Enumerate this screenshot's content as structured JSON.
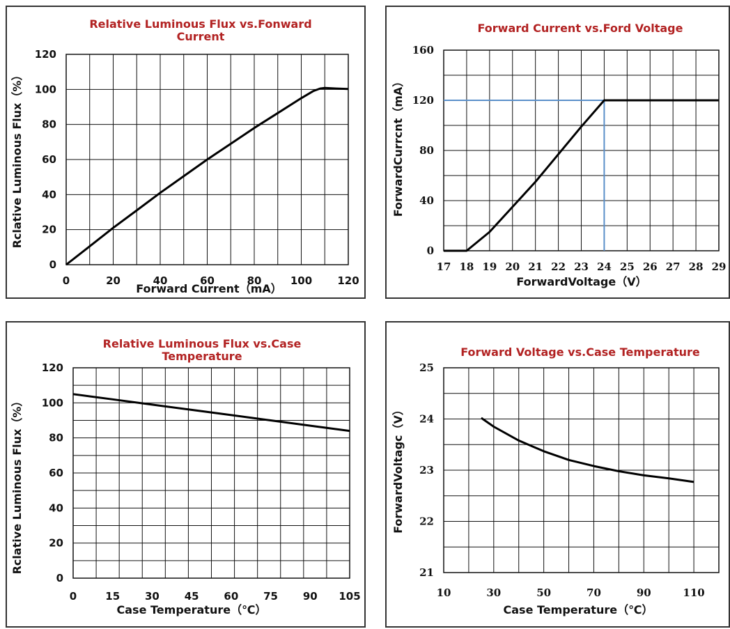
{
  "chart_data": [
    {
      "type": "line",
      "title": "Relative Luminous Flux vs.Fonward Current",
      "title_lines": [
        "Relative Luminous Flux vs.Fonward",
        "Current"
      ],
      "xlabel": "Forward Current（mA）",
      "ylabel": "Rclative Luminous Flux（%）",
      "xlim": [
        0,
        120
      ],
      "ylim": [
        0,
        120
      ],
      "x_ticks": [
        "0",
        "20",
        "40",
        "60",
        "80",
        "100",
        "120"
      ],
      "y_ticks": [
        "0",
        "20",
        "40",
        "60",
        "80",
        "100",
        "120"
      ],
      "grid": true,
      "series": [
        {
          "x": [
            0,
            10,
            20,
            30,
            40,
            50,
            60,
            70,
            80,
            90,
            100,
            105,
            108,
            110,
            115,
            120
          ],
          "y": [
            0,
            10.5,
            21,
            31,
            41,
            50.5,
            60,
            69,
            78,
            86.5,
            95,
            99,
            100.5,
            100.8,
            100.5,
            100.2
          ]
        }
      ]
    },
    {
      "type": "line",
      "title": "Forward Current vs.Ford Voltage",
      "title_lines": [
        "Forward Current vs.Ford Voltage"
      ],
      "xlabel": "ForwardVoltage（V）",
      "ylabel": "ForwardCurrcnt（mA）",
      "xlim": [
        17,
        29
      ],
      "ylim": [
        0,
        160
      ],
      "x_ticks": [
        "17",
        "18",
        "19",
        "20",
        "21",
        "22",
        "23",
        "24",
        "25",
        "26",
        "27",
        "28",
        "29"
      ],
      "y_ticks": [
        "0",
        "40",
        "80",
        "120",
        "160"
      ],
      "grid": true,
      "reference_lines": {
        "x": 24,
        "y": 120,
        "color": "#5a8fc9"
      },
      "series": [
        {
          "x": [
            17,
            18,
            19,
            20,
            21,
            22,
            23,
            24,
            25,
            26,
            27,
            28,
            29
          ],
          "y": [
            0,
            0,
            15,
            35,
            55,
            77,
            99,
            120,
            120,
            120,
            120,
            120,
            120
          ]
        }
      ]
    },
    {
      "type": "line",
      "title": "Relative Luminous Flux vs.Case Temperature",
      "title_lines": [
        "Relative Luminous Flux vs.Case",
        "Temperature"
      ],
      "xlabel": "Case Temperature（℃）",
      "ylabel": "Rclative Luminous Flux（%）",
      "xlim": [
        0,
        105
      ],
      "ylim": [
        0,
        120
      ],
      "x_ticks": [
        "0",
        "15",
        "30",
        "45",
        "60",
        "75",
        "90",
        "105"
      ],
      "y_ticks": [
        "0",
        "20",
        "40",
        "60",
        "80",
        "100",
        "120"
      ],
      "grid": true,
      "series": [
        {
          "x": [
            0,
            15,
            30,
            45,
            60,
            75,
            90,
            105
          ],
          "y": [
            105,
            102,
            99,
            96,
            93,
            90,
            87,
            84
          ]
        }
      ]
    },
    {
      "type": "line",
      "title": "Forward Voltage vs.Case Temperature",
      "title_lines": [
        "Forward Voltage vs.Case Temperature"
      ],
      "xlabel": "Case Temperature（℃）",
      "ylabel": "ForwardVoltagc（V）",
      "xlim": [
        10,
        120
      ],
      "ylim": [
        21,
        25
      ],
      "x_ticks": [
        "10",
        "30",
        "50",
        "70",
        "90",
        "110"
      ],
      "y_ticks": [
        "21",
        "22",
        "23",
        "24",
        "25"
      ],
      "grid": true,
      "series": [
        {
          "x": [
            25,
            30,
            40,
            50,
            60,
            70,
            80,
            90,
            100,
            110
          ],
          "y": [
            24.02,
            23.85,
            23.58,
            23.37,
            23.2,
            23.08,
            22.98,
            22.9,
            22.84,
            22.77
          ]
        }
      ]
    }
  ]
}
